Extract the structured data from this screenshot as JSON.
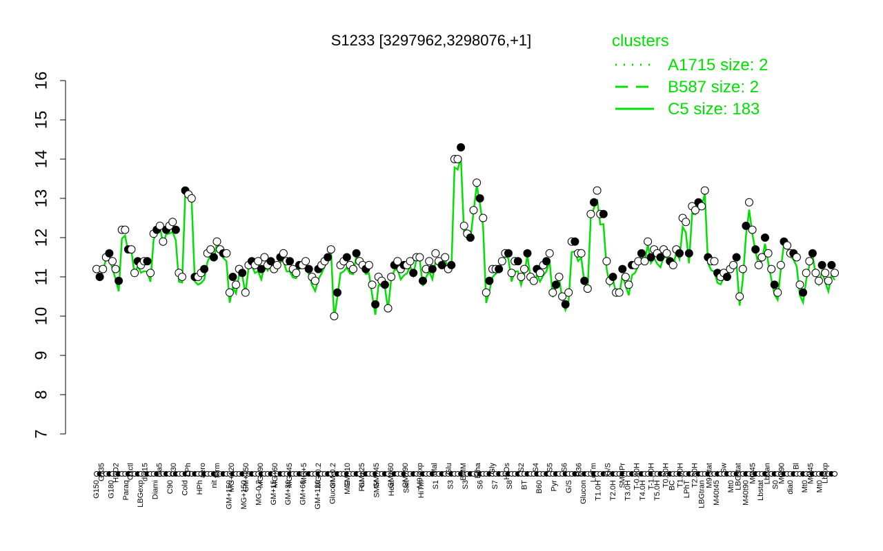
{
  "chart_data": {
    "type": "line",
    "title": "S1233 [3297962,3298076,+1]",
    "xlabel": "",
    "ylabel": "",
    "ylim": [
      7,
      16
    ],
    "yticks": [
      7,
      8,
      9,
      10,
      11,
      12,
      13,
      14,
      15,
      16
    ],
    "legend": {
      "title": "clusters",
      "position": "top-right",
      "items": [
        {
          "label": "A1715 size: 2",
          "style": "dotted"
        },
        {
          "label": "B587 size: 2",
          "style": "dashed"
        },
        {
          "label": "C5 size: 183",
          "style": "solid"
        }
      ]
    },
    "colors": {
      "line": "#00e000",
      "axis": "#000000",
      "point_fill": "#ffffff",
      "point_fill_dark": "#000000"
    },
    "x_labels_upper": [
      "G135",
      "H2O2",
      "Oxctl",
      "dia15",
      "dia5",
      "C30",
      "LPh",
      "aero",
      "ferm",
      "MG+120",
      "GM+150",
      "MG+90",
      "MG+60",
      "MG+45",
      "MG+5",
      "MG-0.2",
      "GM-0.2",
      "GM+10",
      "GM+25",
      "GM+45",
      "GM+60",
      "GM+90",
      "M9-exp",
      "Mal",
      "Glu",
      "BMM",
      "Etha",
      "Gly",
      "HiOs",
      "S2",
      "S4",
      "S5",
      "S6",
      "B36",
      "LoTm",
      "G/S",
      "SMMPr",
      "T-0.40H",
      "T-1.40H",
      "T0.30H",
      "T1.30H",
      "T2.30H",
      "M9-stat",
      "Sw",
      "LBGstat",
      "M0t45",
      "Lbtran",
      "M0t90",
      "Bl",
      "M0t45",
      "Lbexp"
    ],
    "x_labels_lower": [
      "G150",
      "G180",
      "Paraq",
      "LBGexp",
      "Diami",
      "C90",
      "Cold",
      "HPh",
      "nit",
      "GM+150",
      "MG+150",
      "MG-0.2",
      "GM+15",
      "GM+30",
      "GM+60",
      "GM+120",
      "Glucon",
      "M/G",
      "Fru",
      "SMM",
      "Heat",
      "Salt",
      "HiTm",
      "S1",
      "S3",
      "S3",
      "S6",
      "S7",
      "S8",
      "BT",
      "B60",
      "Pyr",
      "G/S",
      "Glucon",
      "T1.0H",
      "T2.0H",
      "T3.0H",
      "T4.0H",
      "T5.0H",
      "BC",
      "LPhT",
      "LBGtran",
      "M40t45",
      "Mt0",
      "M40t90",
      "Lbstat",
      "S0",
      "dia0",
      "Mt0",
      "Mt0"
    ],
    "series": [
      {
        "name": "",
        "values": [
          11.2,
          11.0,
          11.2,
          11.5,
          11.6,
          11.4,
          11.2,
          10.9,
          12.2,
          12.2,
          11.7,
          11.7,
          11.1,
          11.4,
          11.3,
          11.4,
          11.4,
          11.1,
          12.1,
          12.2,
          12.3,
          11.9,
          12.2,
          12.3,
          12.4,
          12.2,
          11.1,
          11.0,
          13.2,
          13.1,
          13.0,
          11.0,
          11.0,
          11.1,
          11.2,
          11.6,
          11.7,
          11.5,
          11.9,
          11.7,
          11.6,
          11.6,
          10.6,
          11.0,
          10.8,
          11.2,
          11.1,
          10.6,
          11.3,
          11.4,
          11.3,
          11.4,
          11.2,
          11.5,
          11.3,
          11.4,
          11.2,
          11.3,
          11.5,
          11.6,
          11.4,
          11.4,
          11.2,
          11.1,
          11.3,
          11.3,
          11.4,
          11.2,
          11.0,
          10.9,
          11.2,
          11.3,
          11.4,
          11.5,
          11.7,
          10.0,
          10.6,
          11.3,
          11.4,
          11.5,
          11.3,
          11.2,
          11.6,
          11.4,
          11.3,
          11.2,
          11.3,
          10.8,
          10.3,
          11.0,
          10.9,
          10.8,
          10.2,
          11.0,
          11.3,
          11.4,
          11.2,
          11.3,
          11.3,
          11.4,
          11.1,
          11.5,
          11.5,
          10.9,
          11.2,
          11.4,
          11.2,
          11.6,
          11.4,
          11.3,
          11.5,
          11.2,
          11.3,
          14.0,
          14.0,
          14.3,
          12.3,
          12.1,
          12.0,
          12.7,
          13.4,
          13.0,
          12.5,
          10.6,
          10.9,
          11.2,
          11.2,
          11.2,
          11.4,
          11.6,
          11.6,
          11.1,
          11.4,
          11.4,
          11.0,
          11.2,
          11.6,
          11.0,
          10.9,
          11.2,
          11.1,
          11.3,
          11.4,
          11.6,
          10.6,
          10.8,
          11.0,
          10.5,
          10.3,
          10.6,
          11.9,
          11.9,
          11.6,
          11.6,
          10.9,
          10.7,
          12.6,
          12.9,
          13.2,
          12.6,
          12.6,
          11.4,
          10.9,
          11.0,
          10.6,
          10.6,
          11.2,
          11.0,
          10.8,
          11.3,
          11.3,
          11.4,
          11.6,
          11.4,
          11.9,
          11.5,
          11.7,
          11.6,
          11.5,
          11.7,
          11.6,
          11.4,
          11.3,
          11.7,
          11.6,
          12.5,
          12.4,
          11.6,
          12.8,
          12.7,
          12.9,
          12.8,
          13.2,
          11.5,
          11.4,
          11.4,
          11.1,
          11.0,
          11.1,
          11.0,
          11.2,
          11.3,
          11.5,
          10.5,
          11.2,
          12.3,
          12.9,
          12.2,
          11.7,
          11.3,
          11.5,
          12.0,
          11.6,
          11.2,
          10.8,
          10.6,
          11.3,
          11.9,
          11.8,
          11.6,
          11.6,
          11.5,
          10.8,
          10.6,
          11.1,
          11.4,
          11.6,
          11.1,
          10.9,
          11.3,
          11.1,
          10.9,
          11.3,
          11.1
        ]
      }
    ]
  }
}
